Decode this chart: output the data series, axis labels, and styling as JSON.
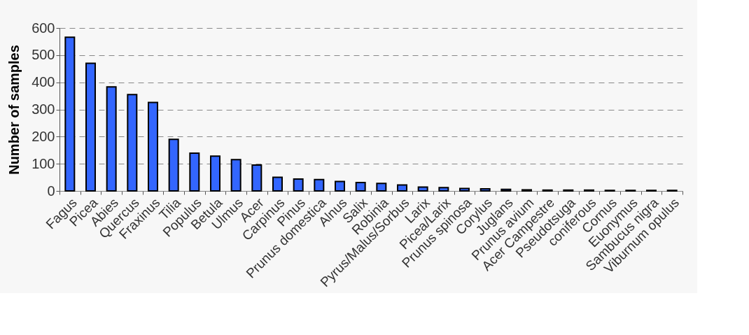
{
  "chart_data": {
    "type": "bar",
    "ylabel": "Number of samples",
    "categories": [
      "Fagus",
      "Picea",
      "Abies",
      "Quercus",
      "Fraxinus",
      "Tilia",
      "Populus",
      "Betula",
      "Ulmus",
      "Acer",
      "Carpinus",
      "Pinus",
      "Prunus domestica",
      "Alnus",
      "Salix",
      "Robinia",
      "Pyrus/Malus/Sorbus",
      "Larix",
      "Picea/Larix",
      "Prunus spinosa",
      "Corylus",
      "Juglans",
      "Prunus avium",
      "Acer Campestre",
      "Pseudotsuga",
      "coniferous",
      "Cornus",
      "Euonymus",
      "Sambucus nigra",
      "Viburnum opulus"
    ],
    "values": [
      566,
      470,
      383,
      355,
      326,
      190,
      139,
      128,
      115,
      95,
      50,
      44,
      42,
      35,
      31,
      28,
      22,
      14,
      12,
      9,
      8,
      6,
      4,
      3,
      3,
      3,
      2,
      2,
      2,
      2
    ],
    "color": "#3366ff",
    "ylim": [
      0,
      600
    ],
    "yticks": [
      0,
      100,
      200,
      300,
      400,
      500,
      600
    ],
    "grid": "y",
    "line_style": "dashed"
  }
}
